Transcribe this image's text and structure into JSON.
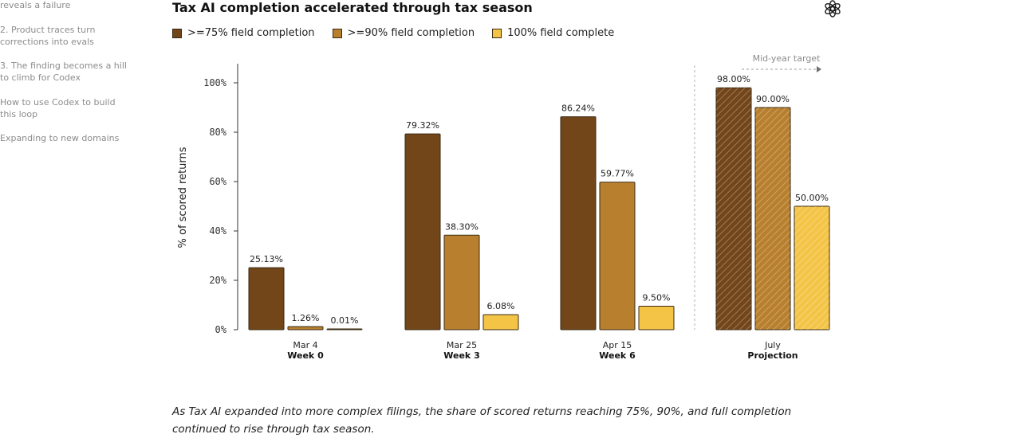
{
  "sidebar": {
    "items": [
      {
        "label": "reveals a failure"
      },
      {
        "label": "2. Product traces turn corrections into evals"
      },
      {
        "label": "3. The finding becomes a hill to climb for Codex"
      },
      {
        "label": "How to use Codex to build this loop"
      },
      {
        "label": "Expanding to new domains"
      }
    ]
  },
  "chart_data": {
    "type": "bar",
    "title": "Tax AI completion accelerated through tax season",
    "ylabel": "% of scored returns",
    "xlabel": "",
    "ylim": [
      0,
      100
    ],
    "yticks": [
      0,
      20,
      40,
      60,
      80,
      100
    ],
    "ytick_labels": [
      "0%",
      "20%",
      "40%",
      "60%",
      "80%",
      "100%"
    ],
    "grid": false,
    "legend_position": "top-left",
    "categories": [
      {
        "label": "Mar 4",
        "sublabel": "Week 0",
        "projection": false
      },
      {
        "label": "Mar 25",
        "sublabel": "Week 3",
        "projection": false
      },
      {
        "label": "Apr 15",
        "sublabel": "Week 6",
        "projection": false
      },
      {
        "label": "July",
        "sublabel": "Projection",
        "projection": true
      }
    ],
    "series": [
      {
        "name": ">=75% field completion",
        "color": "#73461a",
        "values": [
          25.13,
          79.32,
          86.24,
          98.0
        ],
        "value_labels": [
          "25.13%",
          "79.32%",
          "86.24%",
          "98.00%"
        ]
      },
      {
        "name": ">=90% field completion",
        "color": "#b8802e",
        "values": [
          1.26,
          38.3,
          59.77,
          90.0
        ],
        "value_labels": [
          "1.26%",
          "38.30%",
          "59.77%",
          "90.00%"
        ]
      },
      {
        "name": "100% field complete",
        "color": "#f4c446",
        "values": [
          0.01,
          6.08,
          9.5,
          50.0
        ],
        "value_labels": [
          "0.01%",
          "6.08%",
          "9.50%",
          "50.00%"
        ]
      }
    ],
    "annotations": [
      {
        "text": "Mid-year target"
      }
    ]
  },
  "caption": "As Tax AI expanded into more complex filings, the share of scored returns reaching 75%, 90%, and full completion continued to rise through tax season.",
  "colors": {
    "bar_outline": "#3a2a12",
    "axis": "#333333",
    "divider": "#b0b0b0"
  }
}
